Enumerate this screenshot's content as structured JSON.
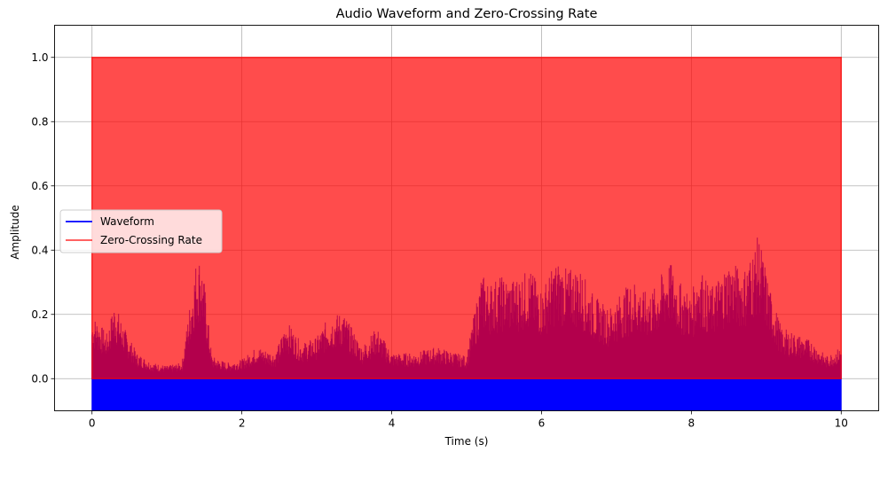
{
  "chart_data": {
    "type": "line",
    "title": "Audio Waveform and Zero-Crossing Rate",
    "xlabel": "Time (s)",
    "ylabel": "Amplitude",
    "xlim": [
      -0.5,
      10.5
    ],
    "ylim": [
      -0.1,
      1.1
    ],
    "x_ticks": [
      0,
      2,
      4,
      6,
      8,
      10
    ],
    "x_tick_labels": [
      "0",
      "2",
      "4",
      "6",
      "8",
      "10"
    ],
    "y_ticks": [
      0.0,
      0.2,
      0.4,
      0.6,
      0.8,
      1.0
    ],
    "y_tick_labels": [
      "0.0",
      "0.2",
      "0.4",
      "0.6",
      "0.8",
      "1.0"
    ],
    "grid": true,
    "legend_position": "center-left",
    "series": [
      {
        "name": "Waveform",
        "color": "#0000ff",
        "x_range": [
          0,
          10
        ],
        "envelope_x": [
          0.05,
          0.2,
          0.3,
          0.45,
          0.6,
          0.8,
          1.0,
          1.2,
          1.38,
          1.45,
          1.5,
          1.6,
          1.8,
          2.0,
          2.2,
          2.45,
          2.6,
          2.8,
          3.0,
          3.15,
          3.35,
          3.6,
          3.8,
          4.0,
          4.3,
          4.6,
          5.0,
          5.2,
          5.3,
          5.45,
          5.6,
          5.75,
          5.85,
          6.0,
          6.2,
          6.35,
          6.5,
          6.7,
          6.9,
          7.1,
          7.25,
          7.35,
          7.5,
          7.7,
          7.85,
          8.0,
          8.1,
          8.25,
          8.5,
          8.7,
          8.9,
          9.05,
          9.2,
          9.4,
          9.6,
          9.8,
          10.0
        ],
        "envelope_max": [
          0.19,
          0.14,
          0.24,
          0.15,
          0.08,
          0.05,
          0.04,
          0.05,
          0.36,
          0.39,
          0.3,
          0.07,
          0.05,
          0.06,
          0.1,
          0.08,
          0.18,
          0.11,
          0.13,
          0.19,
          0.21,
          0.1,
          0.16,
          0.08,
          0.08,
          0.1,
          0.07,
          0.33,
          0.3,
          0.32,
          0.31,
          0.33,
          0.34,
          0.28,
          0.37,
          0.34,
          0.35,
          0.26,
          0.22,
          0.28,
          0.31,
          0.27,
          0.28,
          0.37,
          0.3,
          0.26,
          0.36,
          0.28,
          0.37,
          0.34,
          0.45,
          0.28,
          0.16,
          0.14,
          0.12,
          0.07,
          0.1
        ],
        "visible_min": -0.1
      },
      {
        "name": "Zero-Crossing Rate",
        "color": "#ff0000",
        "opacity": 0.7,
        "x": [
          0,
          10
        ],
        "values": [
          1.0,
          1.0
        ]
      }
    ]
  }
}
